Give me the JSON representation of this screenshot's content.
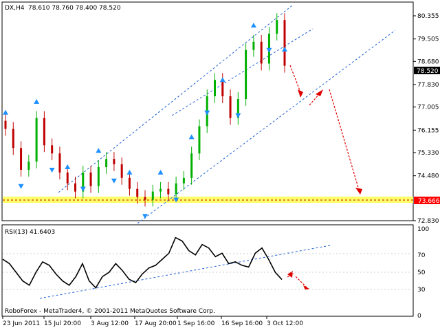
{
  "header": {
    "symbol": "DX,H4",
    "ohlc": "78.610 78.760 78.400 78.520"
  },
  "rsi": {
    "label": "RSI(13) 41.6403",
    "levels": [
      "100",
      "70",
      "50",
      "30",
      "0"
    ]
  },
  "copyright": "RoboForex - MetaTrader4, © 2001-2011 MetaQuotes Software Corp.",
  "colors": {
    "up_candle": "#00b000",
    "down_candle": "#c00000",
    "fractal": "#1e90ff",
    "channel": "#1e5fd6",
    "forecast": "#e00000",
    "support_band": "#ffff66"
  },
  "chart_data": [
    {
      "type": "line",
      "series": [
        {
          "values": [
            76.2,
            75.5,
            74.7,
            75.0,
            76.6,
            75.6,
            75.3,
            74.6,
            74.2,
            73.9,
            74.6,
            74.1,
            74.8,
            75.1,
            74.9,
            74.4,
            74.0,
            73.7,
            73.6,
            73.9,
            74.0,
            73.8,
            74.2,
            74.4,
            75.3,
            76.3,
            77.4,
            78.0,
            77.4,
            76.6,
            77.3,
            79.1,
            79.4,
            78.6,
            79.7,
            80.2,
            78.52
          ]
        }
      ],
      "yticks": [
        "80.355",
        "79.505",
        "78.680",
        "78.520",
        "77.830",
        "77.005",
        "76.155",
        "75.330",
        "74.480",
        "73.666",
        "72.830"
      ],
      "xticks": [
        "23 Jun 2011",
        "15 Jul 20:00",
        "3 Aug 12:00",
        "17 Aug 20:00",
        "1 Sep 16:00",
        "16 Sep 16:00",
        "3 Oct 12:00"
      ],
      "current_price": "78.520",
      "support_level": "73.666",
      "ylim": [
        72.83,
        80.86
      ]
    },
    {
      "type": "line",
      "series": [
        {
          "values": [
            65,
            60,
            50,
            40,
            35,
            50,
            62,
            58,
            48,
            40,
            35,
            45,
            60,
            40,
            32,
            45,
            50,
            60,
            52,
            42,
            38,
            48,
            55,
            58,
            65,
            72,
            90,
            86,
            75,
            70,
            82,
            78,
            68,
            72,
            60,
            62,
            58,
            56,
            72,
            78,
            65,
            50,
            41.64
          ]
        }
      ],
      "ylim": [
        0,
        100
      ]
    }
  ]
}
